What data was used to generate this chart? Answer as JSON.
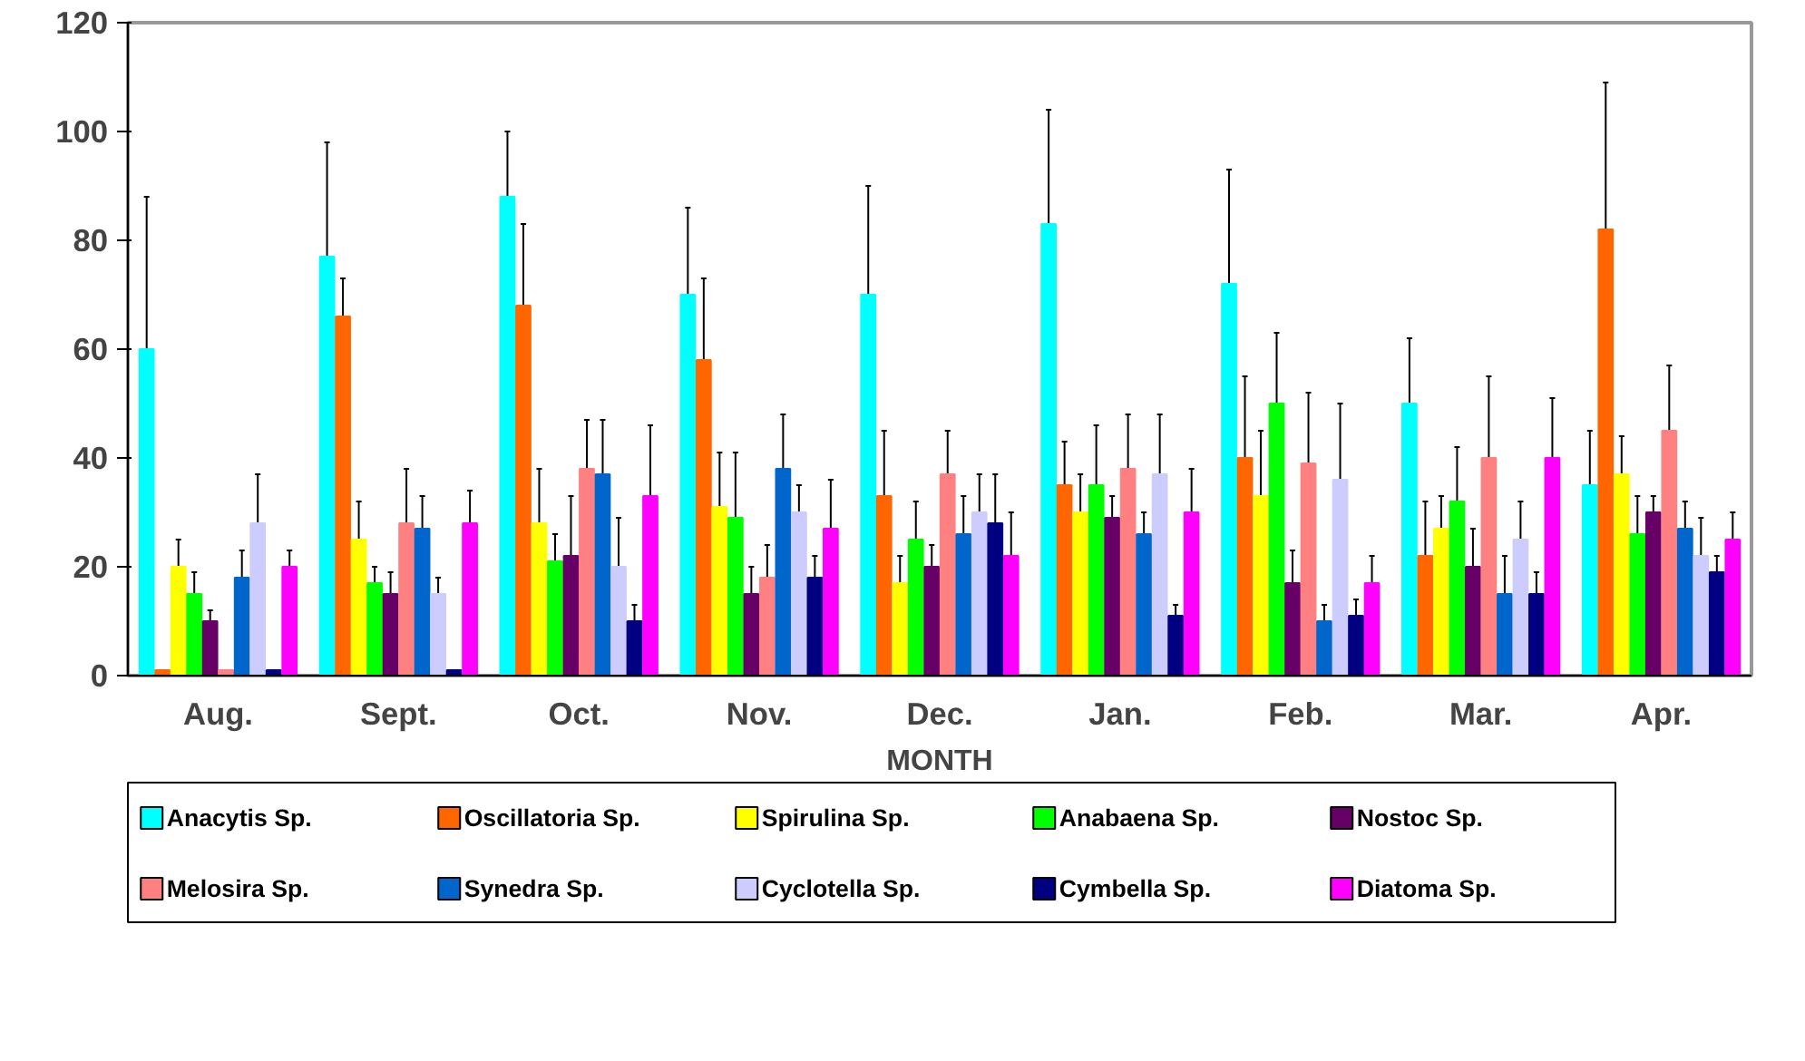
{
  "chart_data": {
    "type": "bar",
    "xlabel": "MONTH",
    "categories": [
      "Aug.",
      "Sept.",
      "Oct.",
      "Nov.",
      "Dec.",
      "Jan.",
      "Feb.",
      "Mar.",
      "Apr."
    ],
    "ylim": [
      0,
      120
    ],
    "yticks": [
      0,
      20,
      40,
      60,
      80,
      100,
      120
    ],
    "grid": false,
    "legend": "bottom",
    "series": [
      {
        "name": "Anacytis Sp.",
        "color": "#00ffff",
        "values": [
          60,
          77,
          88,
          70,
          70,
          83,
          72,
          50,
          35
        ],
        "errors": [
          28,
          21,
          12,
          16,
          20,
          21,
          21,
          12,
          10
        ]
      },
      {
        "name": "Oscillatoria Sp.",
        "color": "#ff6600",
        "values": [
          1,
          66,
          68,
          58,
          33,
          35,
          40,
          22,
          82
        ],
        "errors": [
          null,
          7,
          15,
          15,
          12,
          8,
          15,
          10,
          27
        ]
      },
      {
        "name": "Spirulina Sp.",
        "color": "#ffff00",
        "values": [
          20,
          25,
          28,
          31,
          17,
          30,
          33,
          27,
          37
        ],
        "errors": [
          5,
          7,
          10,
          10,
          5,
          7,
          12,
          6,
          7
        ]
      },
      {
        "name": "Anabaena Sp.",
        "color": "#00ff00",
        "values": [
          15,
          17,
          21,
          29,
          25,
          35,
          50,
          32,
          26
        ],
        "errors": [
          4,
          3,
          5,
          12,
          7,
          11,
          13,
          10,
          7
        ]
      },
      {
        "name": "Nostoc Sp.",
        "color": "#660066",
        "values": [
          10,
          15,
          22,
          15,
          20,
          29,
          17,
          20,
          30
        ],
        "errors": [
          2,
          4,
          11,
          5,
          4,
          4,
          6,
          7,
          3
        ]
      },
      {
        "name": "Melosira Sp.",
        "color": "#ff8080",
        "values": [
          1,
          28,
          38,
          18,
          37,
          38,
          39,
          40,
          45
        ],
        "errors": [
          null,
          10,
          9,
          6,
          8,
          10,
          13,
          15,
          12
        ]
      },
      {
        "name": "Synedra Sp.",
        "color": "#0066cc",
        "values": [
          18,
          27,
          37,
          38,
          26,
          26,
          10,
          15,
          27
        ],
        "errors": [
          5,
          6,
          10,
          10,
          7,
          4,
          3,
          7,
          5
        ]
      },
      {
        "name": "Cyclotella Sp.",
        "color": "#ccccff",
        "values": [
          28,
          15,
          20,
          30,
          30,
          37,
          36,
          25,
          22
        ],
        "errors": [
          9,
          3,
          9,
          5,
          7,
          11,
          14,
          7,
          7
        ]
      },
      {
        "name": "Cymbella Sp.",
        "color": "#000080",
        "values": [
          1,
          1,
          10,
          18,
          28,
          11,
          11,
          15,
          19
        ],
        "errors": [
          null,
          null,
          3,
          4,
          9,
          2,
          3,
          4,
          3
        ]
      },
      {
        "name": "Diatoma Sp.",
        "color": "#ff00ff",
        "values": [
          20,
          28,
          33,
          27,
          22,
          30,
          17,
          40,
          25
        ],
        "errors": [
          3,
          6,
          13,
          9,
          8,
          8,
          5,
          11,
          5
        ]
      }
    ]
  }
}
